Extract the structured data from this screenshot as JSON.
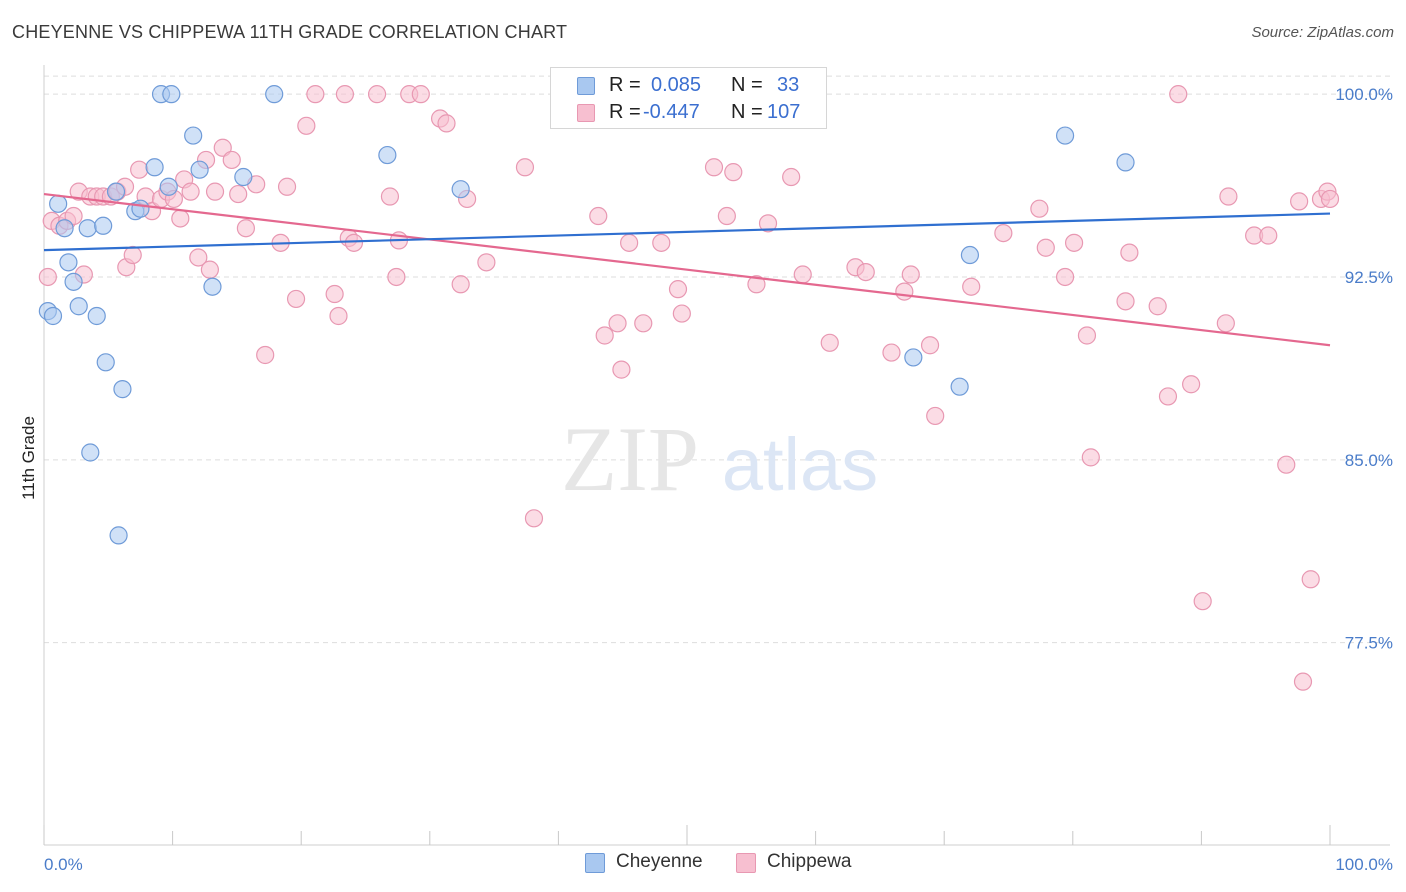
{
  "title": "CHEYENNE VS CHIPPEWA 11TH GRADE CORRELATION CHART",
  "source": "Source: ZipAtlas.com",
  "watermark": {
    "zip": "ZIP",
    "atlas": "atlas"
  },
  "legend": {
    "rows": [
      {
        "r_label": "R =",
        "r_value": "0.085",
        "n_label": "N =",
        "n_value": "33"
      },
      {
        "r_label": "R =",
        "r_value": "-0.447",
        "n_label": "N =",
        "n_value": "107"
      }
    ]
  },
  "bottom_legend": [
    {
      "label": "Cheyenne"
    },
    {
      "label": "Chippewa"
    }
  ],
  "chart_data": {
    "type": "scatter",
    "title": "CHEYENNE VS CHIPPEWA 11TH GRADE CORRELATION CHART",
    "xlabel": "",
    "ylabel": "11th Grade",
    "xlim": [
      0,
      100
    ],
    "ylim": [
      69.2,
      101.4
    ],
    "x_tick_labels": [
      "0.0%",
      "100.0%"
    ],
    "y_ticks": [
      {
        "value": 100.0,
        "label": "100.0%"
      },
      {
        "value": 92.5,
        "label": "92.5%"
      },
      {
        "value": 85.0,
        "label": "85.0%"
      },
      {
        "value": 77.5,
        "label": "77.5%"
      }
    ],
    "grid": true,
    "legend_position": "top-center",
    "colors": {
      "cheyenne_fill": "#a9c8f0",
      "cheyenne_stroke": "#6f9bd8",
      "cheyenne_line": "#2f6fd0",
      "chippewa_fill": "#f7bfd0",
      "chippewa_stroke": "#e898b2",
      "chippewa_line": "#e4688f",
      "tick_text": "#4a7cc9",
      "grid": "#dddddd"
    },
    "series": [
      {
        "name": "Cheyenne",
        "trend": {
          "x": [
            0,
            100
          ],
          "y": [
            93.6,
            95.1
          ]
        },
        "points": [
          [
            0.3,
            91.1
          ],
          [
            0.7,
            90.9
          ],
          [
            1.1,
            95.5
          ],
          [
            1.6,
            94.5
          ],
          [
            1.9,
            93.1
          ],
          [
            2.3,
            92.3
          ],
          [
            2.7,
            91.3
          ],
          [
            3.4,
            94.5
          ],
          [
            4.1,
            90.9
          ],
          [
            4.6,
            94.6
          ],
          [
            4.8,
            89.0
          ],
          [
            5.6,
            96.0
          ],
          [
            6.1,
            87.9
          ],
          [
            7.1,
            95.2
          ],
          [
            7.5,
            95.3
          ],
          [
            8.6,
            97.0
          ],
          [
            9.1,
            100.0
          ],
          [
            9.9,
            100.0
          ],
          [
            9.7,
            96.2
          ],
          [
            11.6,
            98.3
          ],
          [
            12.1,
            96.9
          ],
          [
            13.1,
            92.1
          ],
          [
            15.5,
            96.6
          ],
          [
            17.9,
            100.0
          ],
          [
            26.7,
            97.5
          ],
          [
            32.4,
            96.1
          ],
          [
            3.6,
            85.3
          ],
          [
            5.8,
            81.9
          ],
          [
            67.6,
            89.2
          ],
          [
            71.2,
            88.0
          ],
          [
            72.0,
            93.4
          ],
          [
            79.4,
            98.3
          ],
          [
            84.1,
            97.2
          ]
        ]
      },
      {
        "name": "Chippewa",
        "trend": {
          "x": [
            0,
            100
          ],
          "y": [
            95.9,
            89.7
          ]
        },
        "points": [
          [
            0.3,
            92.5
          ],
          [
            0.6,
            94.8
          ],
          [
            1.2,
            94.6
          ],
          [
            1.8,
            94.8
          ],
          [
            2.3,
            95.0
          ],
          [
            2.7,
            96.0
          ],
          [
            3.1,
            92.6
          ],
          [
            3.6,
            95.8
          ],
          [
            4.1,
            95.8
          ],
          [
            4.6,
            95.8
          ],
          [
            5.2,
            95.8
          ],
          [
            5.7,
            96.0
          ],
          [
            6.3,
            96.2
          ],
          [
            6.4,
            92.9
          ],
          [
            6.9,
            93.4
          ],
          [
            7.4,
            96.9
          ],
          [
            7.9,
            95.8
          ],
          [
            8.4,
            95.2
          ],
          [
            9.1,
            95.7
          ],
          [
            9.6,
            96.0
          ],
          [
            10.1,
            95.7
          ],
          [
            10.6,
            94.9
          ],
          [
            10.9,
            96.5
          ],
          [
            11.4,
            96.0
          ],
          [
            12.0,
            93.3
          ],
          [
            12.6,
            97.3
          ],
          [
            12.9,
            92.8
          ],
          [
            13.3,
            96.0
          ],
          [
            13.9,
            97.8
          ],
          [
            14.6,
            97.3
          ],
          [
            15.1,
            95.9
          ],
          [
            15.7,
            94.5
          ],
          [
            16.5,
            96.3
          ],
          [
            17.2,
            89.3
          ],
          [
            18.4,
            93.9
          ],
          [
            18.9,
            96.2
          ],
          [
            19.6,
            91.6
          ],
          [
            20.4,
            98.7
          ],
          [
            21.1,
            100.0
          ],
          [
            22.6,
            91.8
          ],
          [
            22.9,
            90.9
          ],
          [
            23.4,
            100.0
          ],
          [
            23.7,
            94.1
          ],
          [
            24.1,
            93.9
          ],
          [
            25.9,
            100.0
          ],
          [
            26.9,
            95.8
          ],
          [
            27.4,
            92.5
          ],
          [
            27.6,
            94.0
          ],
          [
            28.4,
            100.0
          ],
          [
            29.3,
            100.0
          ],
          [
            30.8,
            99.0
          ],
          [
            31.3,
            98.8
          ],
          [
            32.4,
            92.2
          ],
          [
            32.9,
            95.7
          ],
          [
            34.4,
            93.1
          ],
          [
            37.4,
            97.0
          ],
          [
            38.1,
            82.6
          ],
          [
            43.1,
            95.0
          ],
          [
            43.6,
            90.1
          ],
          [
            44.6,
            90.6
          ],
          [
            44.9,
            88.7
          ],
          [
            45.5,
            93.9
          ],
          [
            46.6,
            90.6
          ],
          [
            48.0,
            93.9
          ],
          [
            49.3,
            92.0
          ],
          [
            49.6,
            91.0
          ],
          [
            52.1,
            97.0
          ],
          [
            53.6,
            96.8
          ],
          [
            53.1,
            95.0
          ],
          [
            55.4,
            92.2
          ],
          [
            56.3,
            94.7
          ],
          [
            58.1,
            96.6
          ],
          [
            59.0,
            92.6
          ],
          [
            61.1,
            89.8
          ],
          [
            63.1,
            92.9
          ],
          [
            63.9,
            92.7
          ],
          [
            65.9,
            89.4
          ],
          [
            66.9,
            91.9
          ],
          [
            67.4,
            92.6
          ],
          [
            68.9,
            89.7
          ],
          [
            69.3,
            86.8
          ],
          [
            72.1,
            92.1
          ],
          [
            74.6,
            94.3
          ],
          [
            77.4,
            95.3
          ],
          [
            77.9,
            93.7
          ],
          [
            79.4,
            92.5
          ],
          [
            80.1,
            93.9
          ],
          [
            81.1,
            90.1
          ],
          [
            81.4,
            85.1
          ],
          [
            84.1,
            91.5
          ],
          [
            84.4,
            93.5
          ],
          [
            86.6,
            91.3
          ],
          [
            87.4,
            87.6
          ],
          [
            88.2,
            100.0
          ],
          [
            89.2,
            88.1
          ],
          [
            90.1,
            79.2
          ],
          [
            91.9,
            90.6
          ],
          [
            92.1,
            95.8
          ],
          [
            94.1,
            94.2
          ],
          [
            95.2,
            94.2
          ],
          [
            96.6,
            84.8
          ],
          [
            97.6,
            95.6
          ],
          [
            97.9,
            75.9
          ],
          [
            98.5,
            80.1
          ],
          [
            99.3,
            95.7
          ],
          [
            99.8,
            96.0
          ],
          [
            100.0,
            95.7
          ]
        ]
      }
    ]
  }
}
